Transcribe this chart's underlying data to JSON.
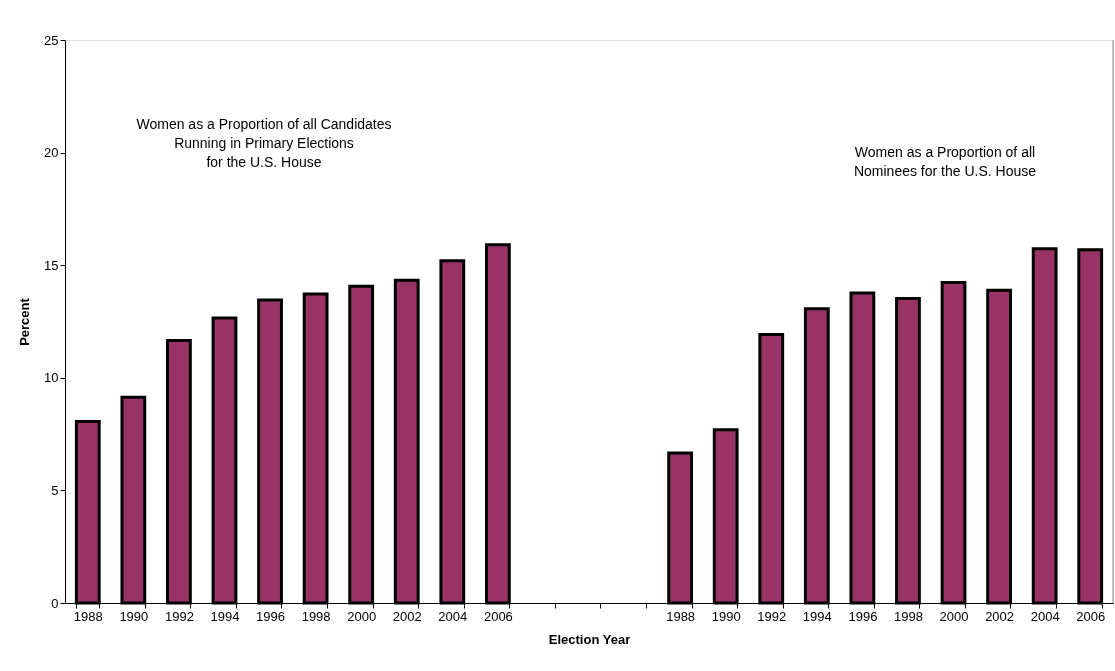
{
  "chart_data": {
    "type": "bar",
    "xlabel": "Election Year",
    "ylabel": "Percent",
    "categories": [
      "1988",
      "1990",
      "1992",
      "1994",
      "1996",
      "1998",
      "2000",
      "2002",
      "2004",
      "2006",
      null,
      null,
      null,
      "1988",
      "1990",
      "1992",
      "1994",
      "1996",
      "1998",
      "2000",
      "2002",
      "2004",
      "2006"
    ],
    "series": [
      {
        "color": "#993366",
        "values": [
          8.06,
          9.14,
          11.66,
          12.65,
          13.46,
          13.72,
          14.07,
          14.33,
          15.2,
          15.91,
          null,
          null,
          null,
          6.66,
          7.69,
          11.92,
          13.07,
          13.76,
          13.52,
          14.23,
          13.89,
          15.73,
          15.69
        ]
      }
    ],
    "ylim": [
      0,
      25
    ],
    "yticks": [
      0,
      5,
      10,
      15,
      20,
      25
    ],
    "grid": false,
    "annotations": [
      "Women as a Proportion of all Candidates\nRunning in Primary Elections\nfor the U.S. House",
      "Women as a Proportion of all\nNominees for the U.S. House"
    ]
  }
}
